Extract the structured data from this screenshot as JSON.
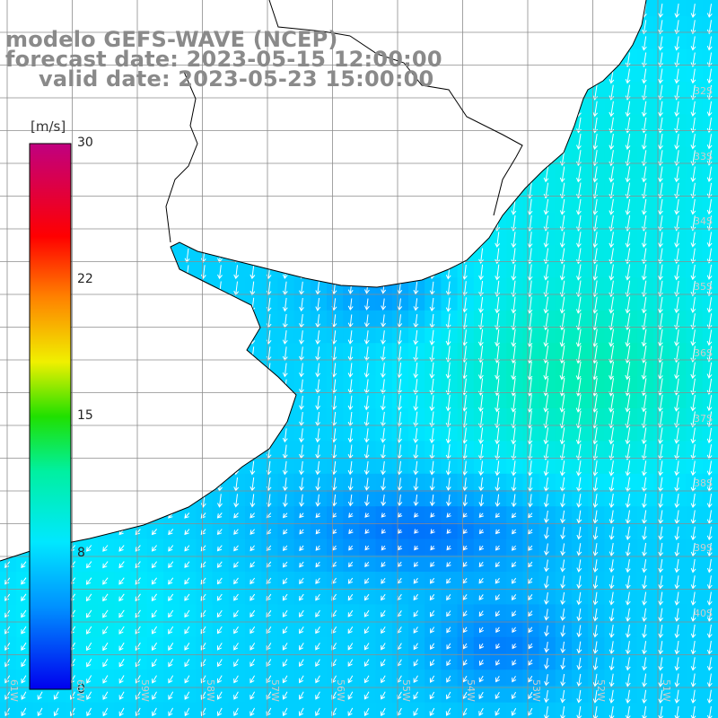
{
  "title": {
    "line1": "modelo GEFS-WAVE (NCEP)",
    "line2": "forecast date: 2023-05-15 12:00:00",
    "line3": "valid date: 2023-05-23 15:00:00"
  },
  "colorbar": {
    "unit": "[m/s]",
    "min": 0,
    "max": 30,
    "ticks": [
      "30",
      "22",
      "15",
      "8",
      "0"
    ],
    "colors": [
      "#0000ee",
      "#0090ff",
      "#00e8ff",
      "#00ff60",
      "#40e000",
      "#f0f000",
      "#ff8000",
      "#ff0000",
      "#c00080"
    ]
  },
  "lat_labels": [
    "32S",
    "33S",
    "34S",
    "35S",
    "36S",
    "37S",
    "38S",
    "39S",
    "40S"
  ],
  "lon_labels": [
    "61W",
    "60W",
    "59W",
    "58W",
    "57W",
    "56W",
    "55W",
    "54W",
    "53W",
    "52W",
    "51W"
  ],
  "colors": {
    "land": "#ffffff",
    "coast": "#000000",
    "grid": "#8c8c8c",
    "arrow": "#ffffff",
    "title": "#8a8a8a"
  }
}
